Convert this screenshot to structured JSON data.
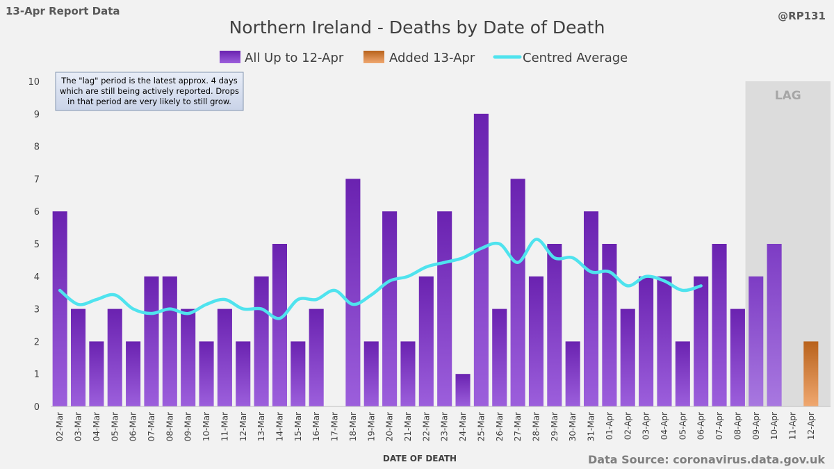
{
  "header": {
    "report_label": "13-Apr Report Data",
    "handle": "@RP131",
    "title": "Northern Ireland - Deaths by Date of Death"
  },
  "legend": {
    "series_main": "All Up to 12-Apr",
    "series_added": "Added 13-Apr",
    "series_avg": "Centred Average"
  },
  "note": {
    "line1": "The \"lag\" period is the latest approx. 4 days",
    "line2": "which are still being actively reported. Drops",
    "line3": "in that period are very likely to still grow."
  },
  "lag_label": "LAG",
  "footer": {
    "xlabel": "DATE OF DEATH",
    "source": "Data Source: coronavirus.data.gov.uk"
  },
  "colors": {
    "bar_main": "#7b33c2",
    "bar_lag": "#8a4bd0",
    "bar_added": "#d07a3a",
    "avg_line": "#4fe3ee",
    "lag_shade": "#dcdcdc",
    "background": "#f2f2f2"
  },
  "chart_data": {
    "type": "bar",
    "title": "Northern Ireland - Deaths by Date of Death",
    "xlabel": "DATE OF DEATH",
    "ylabel": "",
    "ylim": [
      0,
      10
    ],
    "yticks": [
      0,
      1,
      2,
      3,
      4,
      5,
      6,
      7,
      8,
      9,
      10
    ],
    "grid": false,
    "legend_position": "top-center",
    "categories": [
      "02-Mar",
      "03-Mar",
      "04-Mar",
      "05-Mar",
      "06-Mar",
      "07-Mar",
      "08-Mar",
      "09-Mar",
      "10-Mar",
      "11-Mar",
      "12-Mar",
      "13-Mar",
      "14-Mar",
      "15-Mar",
      "16-Mar",
      "17-Mar",
      "18-Mar",
      "19-Mar",
      "20-Mar",
      "21-Mar",
      "22-Mar",
      "23-Mar",
      "24-Mar",
      "25-Mar",
      "26-Mar",
      "27-Mar",
      "28-Mar",
      "29-Mar",
      "30-Mar",
      "31-Mar",
      "01-Apr",
      "02-Apr",
      "03-Apr",
      "04-Apr",
      "05-Apr",
      "06-Apr",
      "07-Apr",
      "08-Apr",
      "09-Apr",
      "10-Apr",
      "11-Apr",
      "12-Apr"
    ],
    "lag_categories": [
      "09-Apr",
      "10-Apr",
      "11-Apr",
      "12-Apr"
    ],
    "series": [
      {
        "name": "All Up to 12-Apr",
        "kind": "bar",
        "values": [
          6,
          3,
          2,
          3,
          2,
          4,
          4,
          3,
          2,
          3,
          2,
          4,
          5,
          2,
          3,
          0,
          7,
          2,
          6,
          2,
          4,
          6,
          1,
          9,
          3,
          7,
          4,
          5,
          2,
          6,
          5,
          3,
          4,
          4,
          2,
          4,
          5,
          3,
          4,
          5,
          0,
          0
        ]
      },
      {
        "name": "Added 13-Apr",
        "kind": "bar",
        "values": [
          0,
          0,
          0,
          0,
          0,
          0,
          0,
          0,
          0,
          0,
          0,
          0,
          0,
          0,
          0,
          0,
          0,
          0,
          0,
          0,
          0,
          0,
          0,
          0,
          0,
          0,
          0,
          0,
          0,
          0,
          0,
          0,
          0,
          0,
          0,
          0,
          0,
          0,
          0,
          0,
          0,
          2
        ]
      },
      {
        "name": "Centred Average",
        "kind": "line",
        "values": [
          3.57,
          3.14,
          3.29,
          3.43,
          3.0,
          2.86,
          3.0,
          2.86,
          3.14,
          3.29,
          3.0,
          3.0,
          2.71,
          3.29,
          3.29,
          3.57,
          3.14,
          3.43,
          3.86,
          4.0,
          4.29,
          4.43,
          4.57,
          4.86,
          5.0,
          4.43,
          5.14,
          4.57,
          4.57,
          4.14,
          4.14,
          3.71,
          4.0,
          3.86,
          3.57,
          3.71,
          null,
          null,
          null,
          null,
          null,
          null
        ]
      }
    ]
  }
}
